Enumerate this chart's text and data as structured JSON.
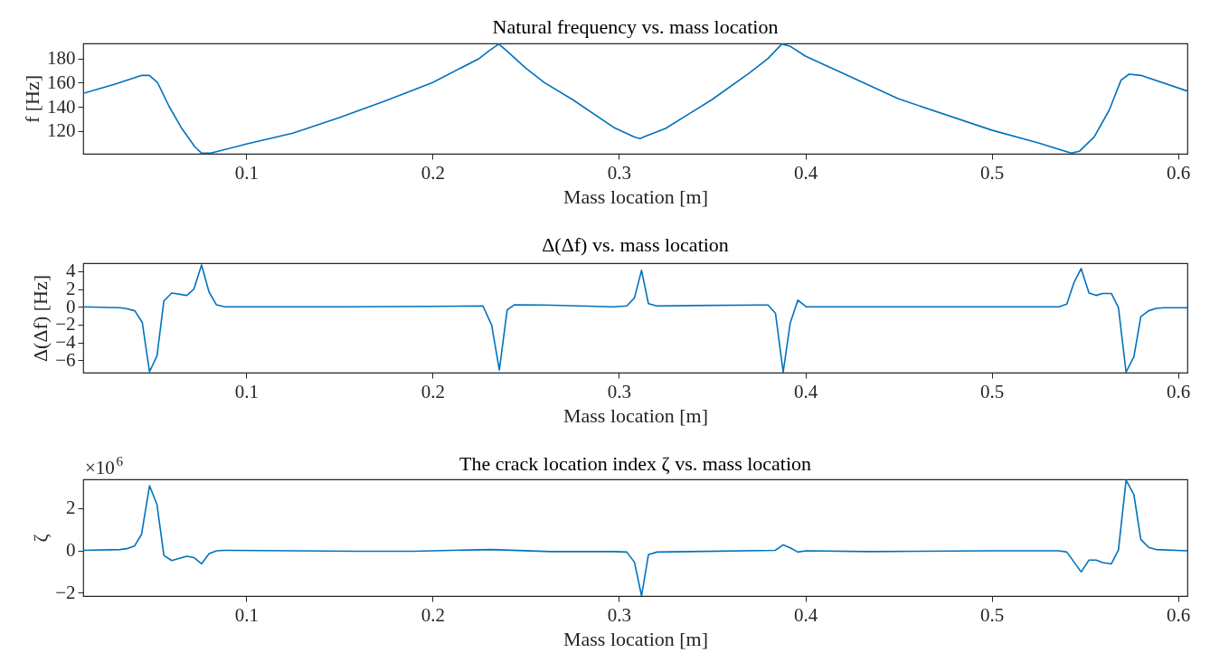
{
  "chart_data": [
    {
      "type": "line",
      "title": "Natural frequency vs. mass location",
      "xlabel": "Mass location [m]",
      "ylabel": "f [Hz]",
      "color": "#0072bd",
      "x": [
        0.0125,
        0.03,
        0.044,
        0.048,
        0.0524,
        0.0587,
        0.065,
        0.0723,
        0.076,
        0.0809,
        0.1,
        0.125,
        0.15,
        0.175,
        0.2,
        0.225,
        0.23,
        0.2355,
        0.24,
        0.25,
        0.26,
        0.275,
        0.297,
        0.308,
        0.3112,
        0.315,
        0.325,
        0.35,
        0.37,
        0.38,
        0.3874,
        0.392,
        0.4,
        0.45,
        0.5,
        0.525,
        0.5427,
        0.547,
        0.555,
        0.563,
        0.5694,
        0.5737,
        0.58,
        0.605
      ],
      "values": [
        151,
        159,
        166,
        166,
        160,
        140,
        123,
        107,
        101.5,
        101.5,
        109,
        118,
        131,
        145,
        160,
        180,
        186,
        192,
        186,
        172,
        160,
        146,
        123,
        115,
        113.5,
        116,
        122,
        146,
        168,
        180,
        192,
        190,
        182,
        146.5,
        120.6,
        110,
        101.5,
        103,
        115,
        137,
        162,
        167,
        166,
        153
      ],
      "xlim": [
        0.0125,
        0.605
      ],
      "ylim": [
        101,
        192.5
      ],
      "xticks": [
        0.1,
        0.2,
        0.3,
        0.4,
        0.5,
        0.6
      ],
      "yticks": [
        120,
        140,
        160,
        180
      ]
    },
    {
      "type": "line",
      "title": "Δ(Δf) vs. mass location",
      "xlabel": "Mass location [m]",
      "ylabel": "Δ(Δf) [Hz]",
      "color": "#0072bd",
      "x": [
        0.0125,
        0.0323,
        0.0358,
        0.0402,
        0.0442,
        0.0481,
        0.0521,
        0.0558,
        0.06,
        0.0681,
        0.0719,
        0.076,
        0.08,
        0.084,
        0.0885,
        0.15,
        0.2,
        0.227,
        0.2317,
        0.2358,
        0.24,
        0.2438,
        0.26,
        0.297,
        0.3042,
        0.3083,
        0.3121,
        0.3158,
        0.3204,
        0.3755,
        0.38,
        0.384,
        0.3881,
        0.3919,
        0.396,
        0.4004,
        0.5,
        0.536,
        0.5403,
        0.5441,
        0.548,
        0.5522,
        0.556,
        0.5595,
        0.5642,
        0.568,
        0.5721,
        0.5763,
        0.58,
        0.5842,
        0.5881,
        0.5927,
        0.605
      ],
      "values": [
        0,
        -0.1,
        -0.2,
        -0.45,
        -1.76,
        -7.3,
        -5.5,
        0.66,
        1.54,
        1.28,
        1.98,
        4.7,
        1.67,
        0.22,
        0,
        0,
        0.05,
        0.1,
        -2.07,
        -7.1,
        -0.35,
        0.22,
        0.2,
        0,
        0.1,
        1.0,
        4.1,
        0.35,
        0.1,
        0.2,
        0.2,
        -0.75,
        -7.35,
        -1.8,
        0.75,
        0,
        0,
        0,
        0.3,
        2.7,
        4.3,
        1.54,
        1.28,
        1.5,
        1.5,
        -0.1,
        -7.35,
        -5.6,
        -1.1,
        -0.45,
        -0.18,
        -0.1,
        -0.1
      ],
      "xlim": [
        0.0125,
        0.605
      ],
      "ylim": [
        -7.4,
        4.9
      ],
      "xticks": [
        0.1,
        0.2,
        0.3,
        0.4,
        0.5,
        0.6
      ],
      "yticks": [
        -6,
        -4,
        -2,
        0,
        2,
        4
      ]
    },
    {
      "type": "line",
      "title": "The crack location index ζ vs. mass location",
      "xlabel": "Mass location [m]",
      "ylabel": "ζ",
      "color": "#0072bd",
      "annotations": [
        "×10$^{6}$"
      ],
      "x": [
        0.0125,
        0.0323,
        0.0358,
        0.04,
        0.0438,
        0.0481,
        0.0521,
        0.0558,
        0.06,
        0.0681,
        0.0719,
        0.076,
        0.08,
        0.084,
        0.0885,
        0.159,
        0.19,
        0.2313,
        0.2635,
        0.297,
        0.3042,
        0.3083,
        0.3121,
        0.3158,
        0.3204,
        0.3838,
        0.3881,
        0.3919,
        0.396,
        0.4004,
        0.4347,
        0.5,
        0.536,
        0.5403,
        0.548,
        0.5522,
        0.556,
        0.5595,
        0.5642,
        0.568,
        0.5721,
        0.5763,
        0.58,
        0.5842,
        0.5881,
        0.605
      ],
      "values": [
        0,
        0.04,
        0.08,
        0.2,
        0.76,
        3.06,
        2.16,
        -0.24,
        -0.48,
        -0.28,
        -0.34,
        -0.64,
        -0.16,
        -0.02,
        0,
        -0.04,
        -0.04,
        0.04,
        -0.06,
        -0.06,
        -0.08,
        -0.56,
        -2.15,
        -0.2,
        -0.08,
        0,
        0.26,
        0.12,
        -0.08,
        -0.02,
        -0.06,
        -0.02,
        -0.02,
        -0.08,
        -1.02,
        -0.46,
        -0.46,
        -0.58,
        -0.64,
        0.02,
        3.32,
        2.64,
        0.52,
        0.14,
        0.04,
        -0.02
      ],
      "xlim": [
        0.0125,
        0.605
      ],
      "ylim": [
        -2.16,
        3.36
      ],
      "xticks": [
        0.1,
        0.2,
        0.3,
        0.4,
        0.5,
        0.6
      ],
      "yticks": [
        -2,
        0,
        2
      ]
    }
  ]
}
